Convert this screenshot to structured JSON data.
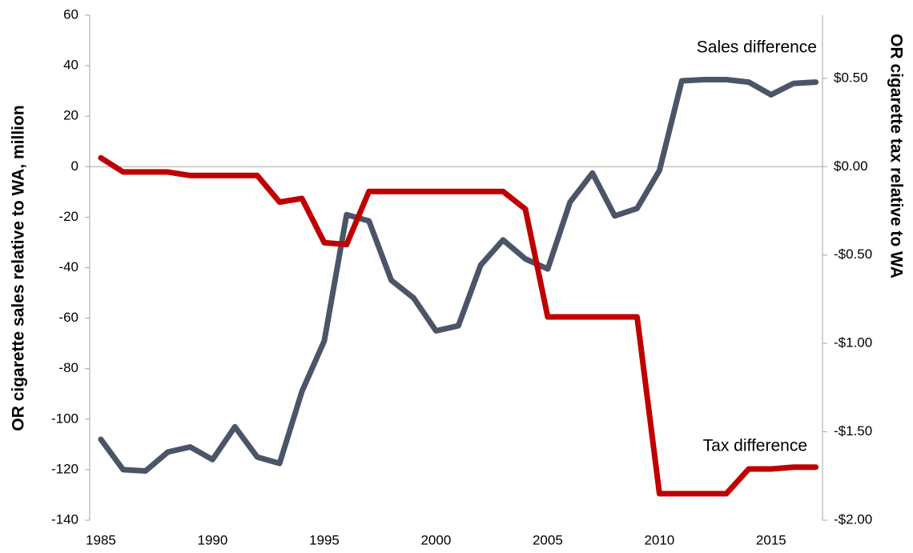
{
  "chart_data": {
    "type": "line",
    "y_label": "OR cigarette sales relative to WA, million",
    "y2_label": "OR cigarette tax relative to WA",
    "x": [
      1985,
      1986,
      1987,
      1988,
      1989,
      1990,
      1991,
      1992,
      1993,
      1994,
      1995,
      1996,
      1997,
      1998,
      1999,
      2000,
      2001,
      2002,
      2003,
      2004,
      2005,
      2006,
      2007,
      2008,
      2009,
      2010,
      2011,
      2012,
      2013,
      2014,
      2015,
      2016,
      2017
    ],
    "series": [
      {
        "name": "Sales difference",
        "color": "#4b5568",
        "values": [
          -108,
          -120,
          -120.5,
          -113,
          -111,
          -116,
          -103,
          -115,
          -117.5,
          -89,
          -69,
          -19,
          -21.5,
          -45,
          -52,
          -65,
          -63,
          -39,
          -29,
          -36.5,
          -40.5,
          -14,
          -2.5,
          -19.5,
          -16.5,
          -1.5,
          34,
          34.5,
          34.5,
          33.5,
          28.5,
          33,
          33.5
        ]
      },
      {
        "name": "Tax difference",
        "color": "#c00000",
        "axis": "y2",
        "values": [
          0.05,
          -0.03,
          -0.03,
          -0.03,
          -0.05,
          -0.05,
          -0.05,
          -0.05,
          -0.2,
          -0.18,
          -0.43,
          -0.44,
          -0.14,
          -0.14,
          -0.14,
          -0.14,
          -0.14,
          -0.14,
          -0.14,
          -0.24,
          -0.85,
          -0.85,
          -0.85,
          -0.85,
          -0.85,
          -1.85,
          -1.85,
          -1.85,
          -1.85,
          -1.71,
          -1.71,
          -1.7,
          -1.7
        ]
      }
    ],
    "xlim": [
      1984.5,
      2017.3
    ],
    "xticks": [
      1985,
      1990,
      1995,
      2000,
      2005,
      2010,
      2015
    ],
    "ylim": [
      -140,
      60
    ],
    "yticks": [
      -140,
      -120,
      -100,
      -80,
      -60,
      -40,
      -20,
      0,
      20,
      40,
      60
    ],
    "y2lim": [
      -2,
      0.857
    ],
    "y2ticks": [
      {
        "value": -2,
        "label": "-$2.00"
      },
      {
        "value": -1.5,
        "label": "-$1.50"
      },
      {
        "value": -1,
        "label": "-$1.00"
      },
      {
        "value": -0.5,
        "label": "-$0.50"
      },
      {
        "value": 0,
        "label": "$0.00"
      },
      {
        "value": 0.5,
        "label": "$0.50"
      }
    ]
  }
}
